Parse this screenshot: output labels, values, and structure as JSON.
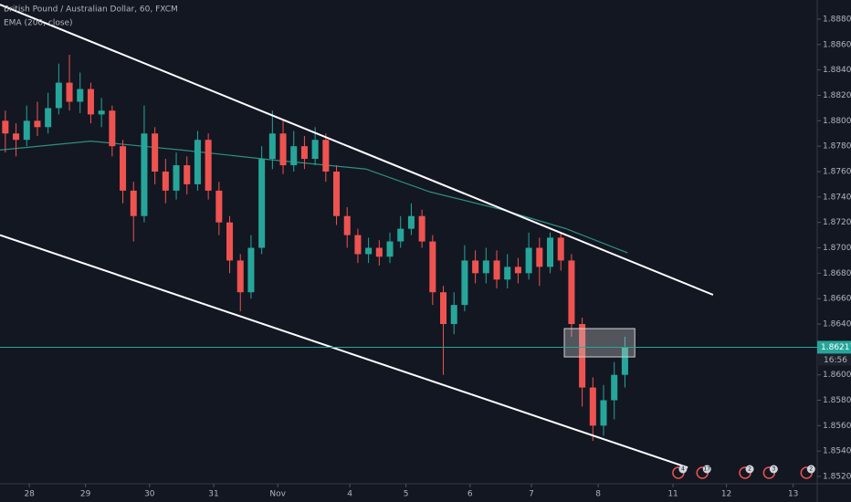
{
  "chart_data": {
    "type": "candlestick",
    "title": "British Pound / Australian Dollar, 60, FXCM",
    "indicator_label": "EMA (200, close)",
    "background": "#131722",
    "up_color": "#26a69a",
    "down_color": "#ef5350",
    "xlim": [
      0,
      306
    ],
    "xticks": [
      {
        "value": 11,
        "label": "28"
      },
      {
        "value": 32,
        "label": "29"
      },
      {
        "value": 56,
        "label": "30"
      },
      {
        "value": 80,
        "label": "31"
      },
      {
        "value": 104,
        "label": "Nov"
      },
      {
        "value": 131,
        "label": "4"
      },
      {
        "value": 152,
        "label": "5"
      },
      {
        "value": 176,
        "label": "6"
      },
      {
        "value": 199,
        "label": "7"
      },
      {
        "value": 224,
        "label": "8"
      },
      {
        "value": 252,
        "label": "11"
      },
      {
        "value": 272,
        "label": "12"
      },
      {
        "value": 297,
        "label": "13"
      }
    ],
    "ylim": [
      1.852,
      1.888
    ],
    "yticks": [
      {
        "value": 1.852,
        "label": "1.85200"
      },
      {
        "value": 1.854,
        "label": "1.85400"
      },
      {
        "value": 1.856,
        "label": "1.85600"
      },
      {
        "value": 1.858,
        "label": "1.85800"
      },
      {
        "value": 1.86,
        "label": "1.86000"
      },
      {
        "value": 1.862,
        "label": "1.86200"
      },
      {
        "value": 1.864,
        "label": "1.86400"
      },
      {
        "value": 1.866,
        "label": "1.86600"
      },
      {
        "value": 1.868,
        "label": "1.86800"
      },
      {
        "value": 1.87,
        "label": "1.87000"
      },
      {
        "value": 1.872,
        "label": "1.87200"
      },
      {
        "value": 1.874,
        "label": "1.87400"
      },
      {
        "value": 1.876,
        "label": "1.87600"
      },
      {
        "value": 1.878,
        "label": "1.87800"
      },
      {
        "value": 1.88,
        "label": "1.88000"
      },
      {
        "value": 1.882,
        "label": "1.88200"
      },
      {
        "value": 1.884,
        "label": "1.88400"
      },
      {
        "value": 1.886,
        "label": "1.88600"
      },
      {
        "value": 1.888,
        "label": "1.88800"
      }
    ],
    "candles": {
      "x": [
        2,
        6,
        10,
        14,
        18,
        22,
        26,
        30,
        34,
        38,
        42,
        46,
        50,
        54,
        58,
        62,
        66,
        70,
        74,
        78,
        82,
        86,
        90,
        94,
        98,
        102,
        106,
        110,
        114,
        118,
        122,
        126,
        130,
        134,
        138,
        142,
        146,
        150,
        154,
        158,
        162,
        166,
        170,
        174,
        178,
        182,
        186,
        190,
        194,
        198,
        202,
        206,
        210,
        214,
        218,
        222,
        226,
        230,
        234
      ],
      "open": [
        1.88,
        1.879,
        1.8785,
        1.88,
        1.8795,
        1.881,
        1.883,
        1.8815,
        1.8825,
        1.8805,
        1.8808,
        1.878,
        1.8745,
        1.8725,
        1.879,
        1.876,
        1.8745,
        1.8765,
        1.875,
        1.8785,
        1.8745,
        1.872,
        1.869,
        1.8665,
        1.87,
        1.877,
        1.879,
        1.8765,
        1.878,
        1.877,
        1.8785,
        1.876,
        1.8725,
        1.871,
        1.8695,
        1.87,
        1.8693,
        1.8705,
        1.8715,
        1.8725,
        1.8705,
        1.8665,
        1.864,
        1.8655,
        1.869,
        1.868,
        1.869,
        1.8675,
        1.8685,
        1.868,
        1.87,
        1.8685,
        1.8708,
        1.869,
        1.864,
        1.859,
        1.856,
        1.858,
        1.86
      ],
      "high": [
        1.8808,
        1.8798,
        1.8812,
        1.8815,
        1.8822,
        1.8845,
        1.8852,
        1.8838,
        1.883,
        1.8818,
        1.8812,
        1.8785,
        1.8752,
        1.8812,
        1.8795,
        1.877,
        1.8775,
        1.8772,
        1.8792,
        1.879,
        1.8752,
        1.8725,
        1.8695,
        1.871,
        1.878,
        1.8808,
        1.88,
        1.8792,
        1.8788,
        1.8795,
        1.879,
        1.8765,
        1.8732,
        1.8715,
        1.8708,
        1.8706,
        1.8712,
        1.8725,
        1.8735,
        1.873,
        1.871,
        1.867,
        1.8665,
        1.8702,
        1.8698,
        1.87,
        1.8698,
        1.8695,
        1.8692,
        1.8712,
        1.8708,
        1.8712,
        1.8712,
        1.8695,
        1.8645,
        1.8598,
        1.8592,
        1.861,
        1.863
      ],
      "low": [
        1.8775,
        1.8772,
        1.878,
        1.8788,
        1.879,
        1.8805,
        1.8808,
        1.8806,
        1.8798,
        1.8795,
        1.8772,
        1.8735,
        1.8705,
        1.872,
        1.875,
        1.8735,
        1.8738,
        1.8742,
        1.8745,
        1.8738,
        1.871,
        1.868,
        1.865,
        1.866,
        1.8695,
        1.8762,
        1.8758,
        1.876,
        1.8762,
        1.8765,
        1.8752,
        1.8718,
        1.87,
        1.8688,
        1.8688,
        1.8686,
        1.8688,
        1.87,
        1.871,
        1.87,
        1.8655,
        1.86,
        1.8632,
        1.865,
        1.8672,
        1.8672,
        1.8668,
        1.8668,
        1.8672,
        1.8675,
        1.867,
        1.868,
        1.8682,
        1.863,
        1.8575,
        1.8548,
        1.8552,
        1.8565,
        1.859
      ],
      "close": [
        1.879,
        1.8785,
        1.88,
        1.8795,
        1.881,
        1.883,
        1.8815,
        1.8825,
        1.8805,
        1.8808,
        1.878,
        1.8745,
        1.8725,
        1.879,
        1.876,
        1.8745,
        1.8765,
        1.875,
        1.8785,
        1.8745,
        1.872,
        1.869,
        1.8665,
        1.87,
        1.877,
        1.879,
        1.8765,
        1.878,
        1.877,
        1.8785,
        1.876,
        1.8725,
        1.871,
        1.8695,
        1.87,
        1.8693,
        1.8705,
        1.8715,
        1.8725,
        1.8705,
        1.8665,
        1.864,
        1.8655,
        1.869,
        1.868,
        1.869,
        1.8675,
        1.8685,
        1.868,
        1.87,
        1.8685,
        1.8708,
        1.869,
        1.864,
        1.859,
        1.856,
        1.858,
        1.86,
        1.8622
      ]
    },
    "ema": {
      "color": "#2f8f80",
      "x": [
        0,
        34,
        68,
        103,
        137,
        161,
        188,
        212,
        235
      ],
      "values": [
        1.8777,
        1.8784,
        1.8777,
        1.8769,
        1.8762,
        1.8744,
        1.873,
        1.8715,
        1.8696
      ]
    },
    "trendlines": [
      {
        "color": "#ffffff",
        "x": [
          0,
          267
        ],
        "y": [
          1.88915,
          1.8663
        ]
      },
      {
        "color": "#ffffff",
        "x": [
          0,
          257.5
        ],
        "y": [
          1.871,
          1.8527
        ]
      }
    ],
    "zone": {
      "x": [
        211.3,
        237.7
      ],
      "y": [
        1.86141,
        1.86364
      ]
    },
    "last_price": 1.86217,
    "countdown": "16:56",
    "events": {
      "x": [
        254,
        263,
        279,
        288,
        302
      ],
      "counts": [
        4,
        17,
        2,
        3,
        2
      ]
    }
  }
}
